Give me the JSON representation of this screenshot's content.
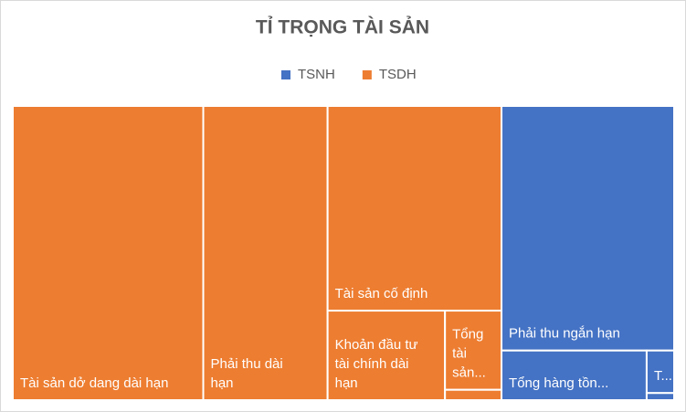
{
  "chart_data": {
    "type": "treemap",
    "title": "TỈ TRỌNG TÀI SẢN",
    "series": [
      {
        "name": "TSNH",
        "color": "#4472c4",
        "categories": [
          "Phải thu ngắn hạn",
          "Tổng hàng tồn...",
          "T...",
          null
        ],
        "values": [
          21.7,
          3.7,
          0.6,
          0.1
        ]
      },
      {
        "name": "TSDH",
        "color": "#ed7d31",
        "categories": [
          "Tài sản dở dang dài hạn",
          "Phải thu dài hạn",
          "Tài sản cố định",
          "Khoản đầu tư tài chính dài hạn",
          "Tổng tài sản...",
          null
        ],
        "values": [
          28.8,
          18.8,
          18.3,
          5.4,
          2.3,
          0.3
        ]
      }
    ]
  }
}
